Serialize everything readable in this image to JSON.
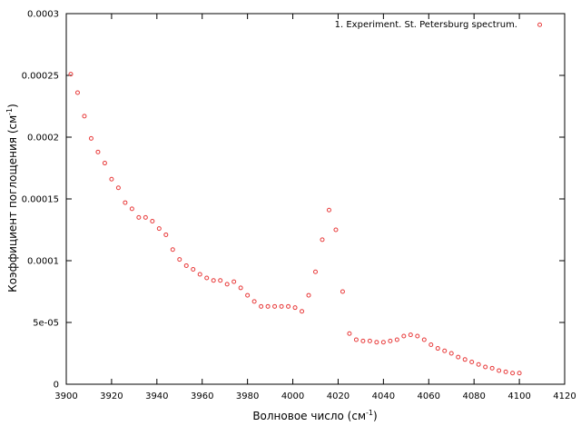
{
  "chart_data": {
    "type": "scatter",
    "xlabel_main": "Волновое число (см",
    "xlabel_sup": "-1",
    "xlabel_end": ")",
    "ylabel_main": "Коэффициент поглощения (см",
    "ylabel_sup": "-1",
    "ylabel_end": ")",
    "xlim": [
      3900,
      4120
    ],
    "ylim": [
      0,
      0.0003
    ],
    "x_ticks": [
      {
        "value": 3900,
        "label": "3900"
      },
      {
        "value": 3920,
        "label": "3920"
      },
      {
        "value": 3940,
        "label": "3940"
      },
      {
        "value": 3960,
        "label": "3960"
      },
      {
        "value": 3980,
        "label": "3980"
      },
      {
        "value": 4000,
        "label": "4000"
      },
      {
        "value": 4020,
        "label": "4020"
      },
      {
        "value": 4040,
        "label": "4040"
      },
      {
        "value": 4060,
        "label": "4060"
      },
      {
        "value": 4080,
        "label": "4080"
      },
      {
        "value": 4100,
        "label": "4100"
      },
      {
        "value": 4120,
        "label": "4120"
      }
    ],
    "y_ticks": [
      {
        "value": 0,
        "label": "0"
      },
      {
        "value": 5e-05,
        "label": "5e-05"
      },
      {
        "value": 0.0001,
        "label": "0.0001"
      },
      {
        "value": 0.00015,
        "label": "0.00015"
      },
      {
        "value": 0.0002,
        "label": "0.0002"
      },
      {
        "value": 0.00025,
        "label": "0.00025"
      },
      {
        "value": 0.0003,
        "label": "0.0003"
      }
    ],
    "grid": false,
    "legend_position": "top-right",
    "series": [
      {
        "name": "1. Experiment. St. Petersburg spectrum.",
        "color": "#e83a3a",
        "marker": "open-circle",
        "x": [
          3902,
          3905,
          3908,
          3911,
          3914,
          3917,
          3920,
          3923,
          3926,
          3929,
          3932,
          3935,
          3938,
          3941,
          3944,
          3947,
          3950,
          3953,
          3956,
          3959,
          3962,
          3965,
          3968,
          3971,
          3974,
          3977,
          3980,
          3983,
          3986,
          3989,
          3992,
          3995,
          3998,
          4001,
          4004,
          4007,
          4010,
          4013,
          4016,
          4019,
          4022,
          4025,
          4028,
          4031,
          4034,
          4037,
          4040,
          4043,
          4046,
          4049,
          4052,
          4055,
          4058,
          4061,
          4064,
          4067,
          4070,
          4073,
          4076,
          4079,
          4082,
          4085,
          4088,
          4091,
          4094,
          4097,
          4100,
          4109
        ],
        "y": [
          0.000251,
          0.000236,
          0.000217,
          0.000199,
          0.000188,
          0.000179,
          0.000166,
          0.000159,
          0.000147,
          0.000142,
          0.000135,
          0.000135,
          0.000132,
          0.000126,
          0.000121,
          0.000109,
          0.000101,
          9.6e-05,
          9.3e-05,
          8.9e-05,
          8.6e-05,
          8.4e-05,
          8.4e-05,
          8.1e-05,
          8.3e-05,
          7.8e-05,
          7.2e-05,
          6.7e-05,
          6.3e-05,
          6.3e-05,
          6.3e-05,
          6.3e-05,
          6.3e-05,
          6.2e-05,
          5.9e-05,
          7.2e-05,
          9.1e-05,
          0.000117,
          0.000141,
          0.000125,
          7.5e-05,
          4.1e-05,
          3.6e-05,
          3.5e-05,
          3.5e-05,
          3.4e-05,
          3.4e-05,
          3.5e-05,
          3.6e-05,
          3.9e-05,
          4e-05,
          3.9e-05,
          3.6e-05,
          3.2e-05,
          2.9e-05,
          2.7e-05,
          2.5e-05,
          2.2e-05,
          2e-05,
          1.8e-05,
          1.6e-05,
          1.4e-05,
          1.3e-05,
          1.1e-05,
          1e-05,
          9e-06,
          9e-06,
          0.000291
        ]
      }
    ]
  }
}
